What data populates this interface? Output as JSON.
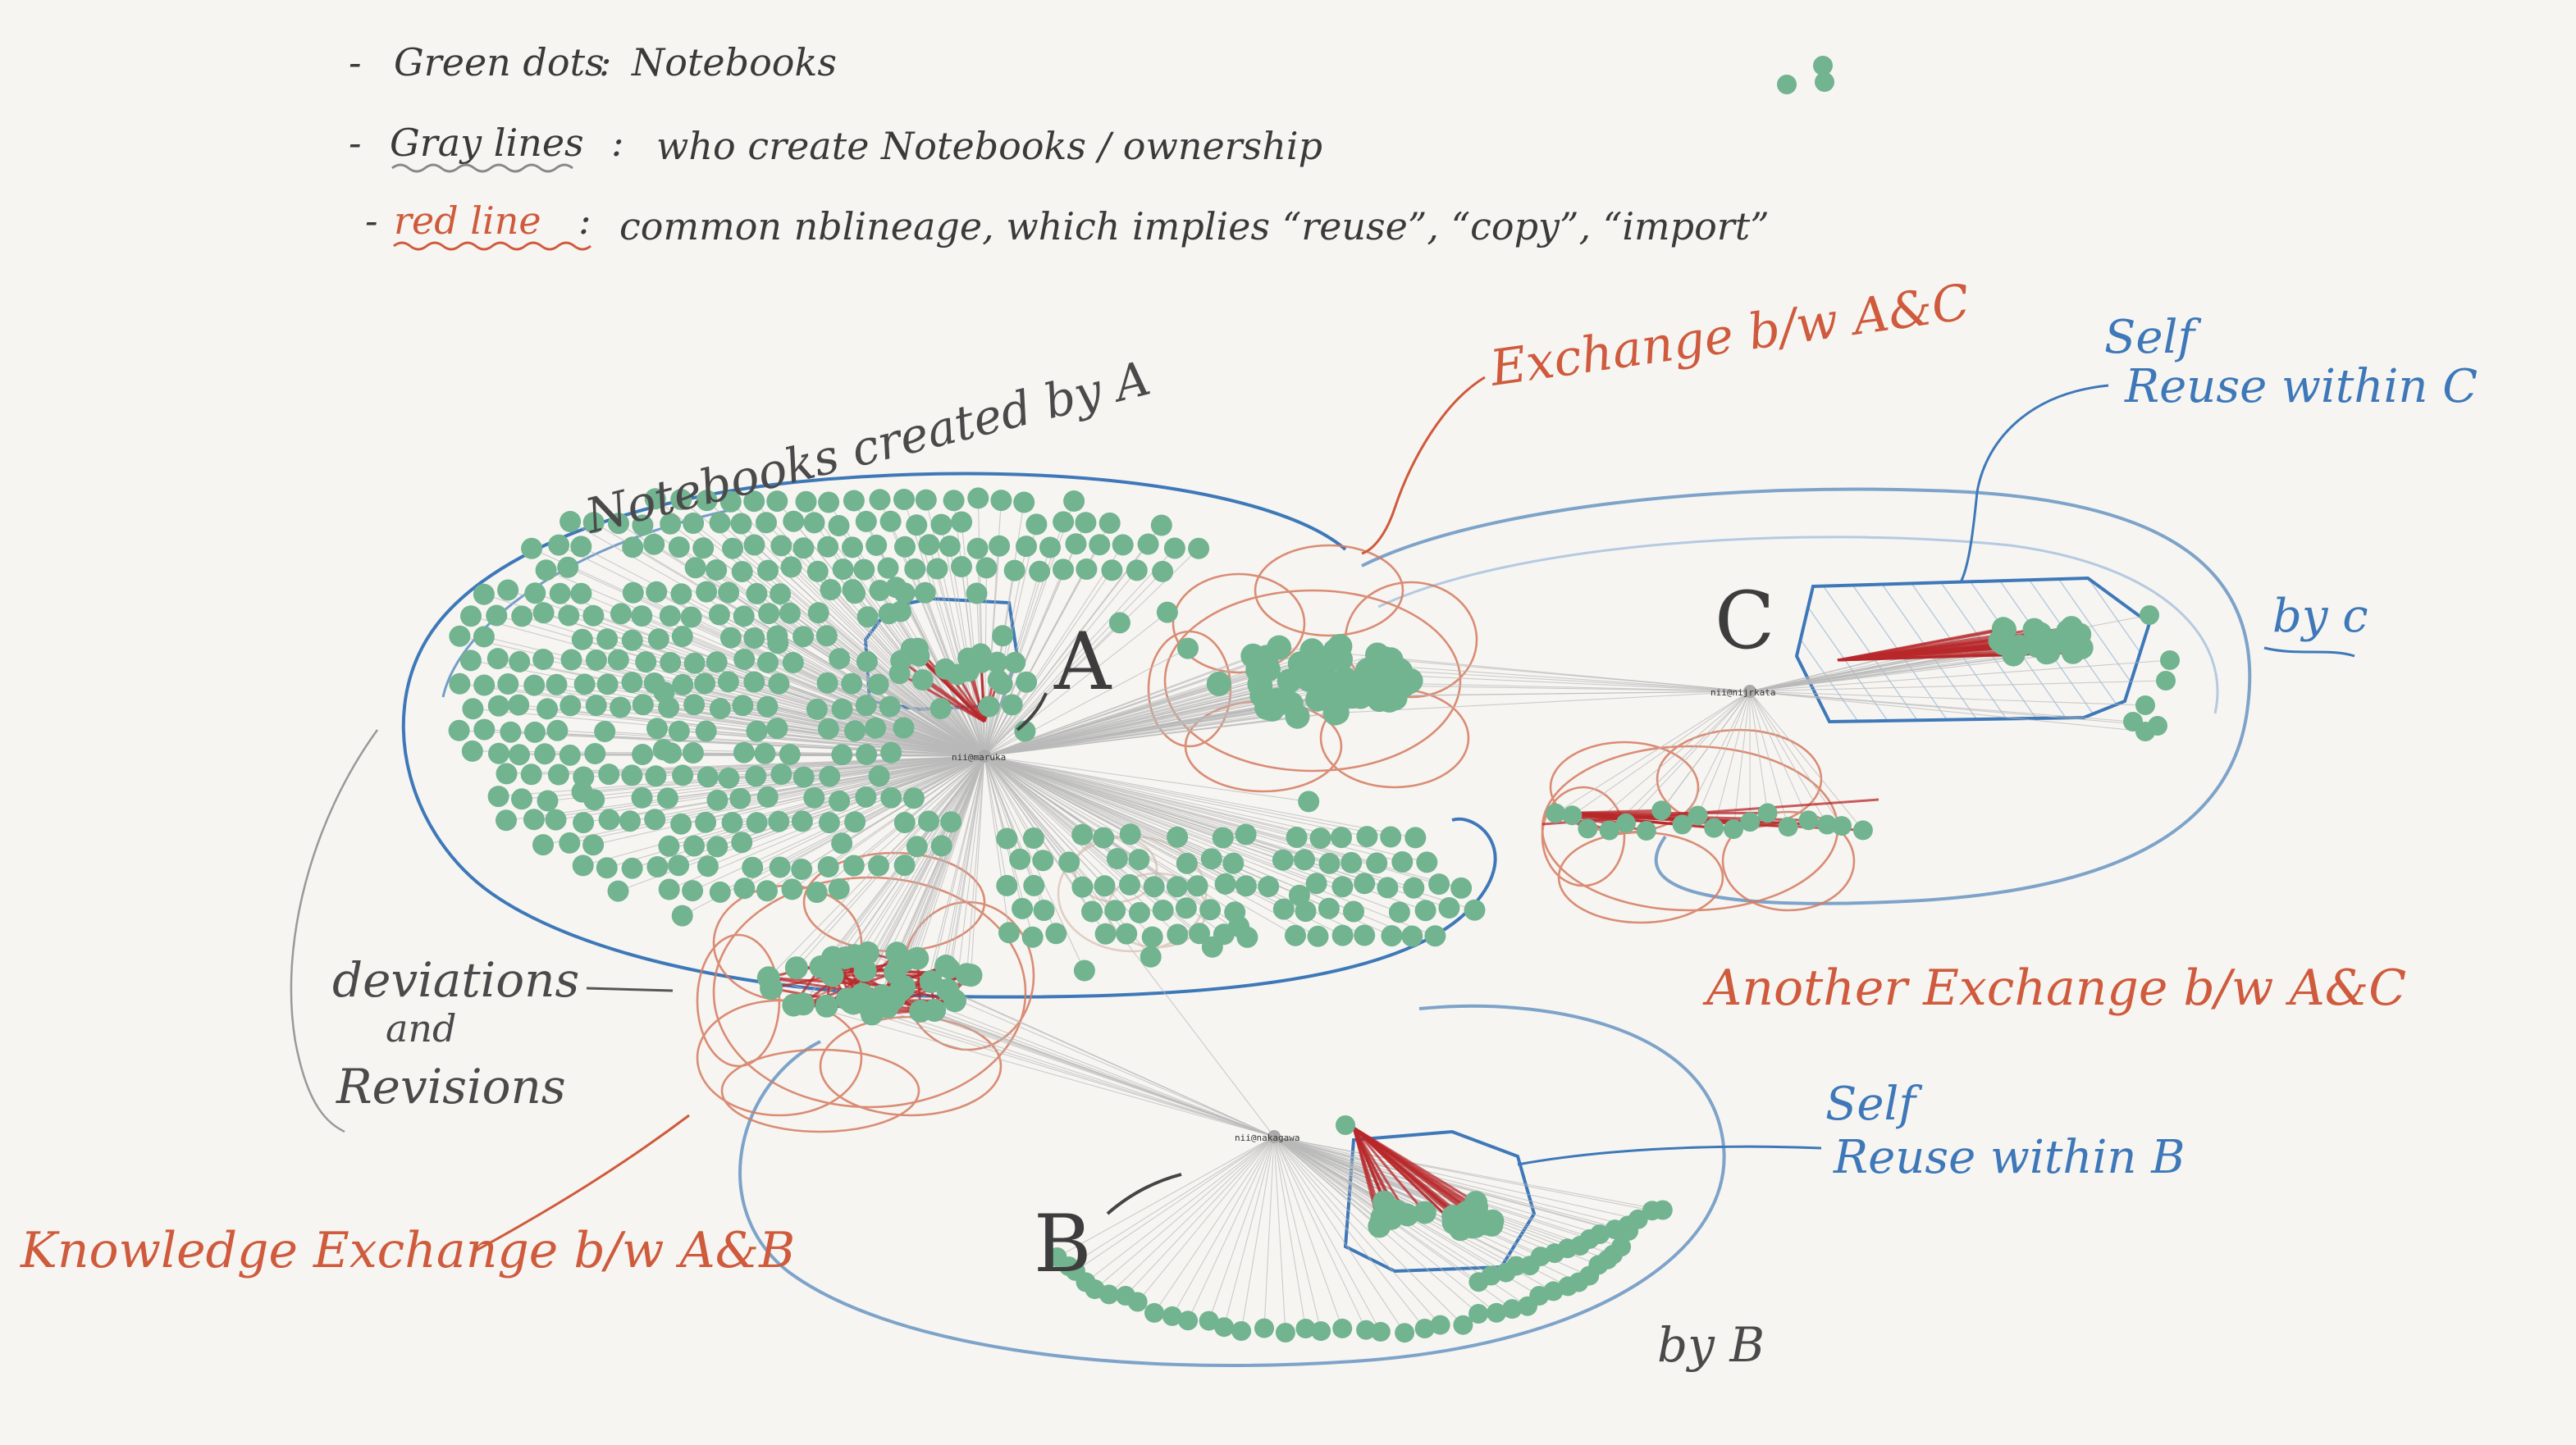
{
  "legend": [
    {
      "dash": "-",
      "key": "Green dots",
      "sep": ":",
      "desc": "Notebooks",
      "key_underline": "none"
    },
    {
      "dash": "-",
      "key": "Gray lines",
      "sep": ":",
      "desc": "who create Notebooks / ownership",
      "key_underline": "gray-wavy"
    },
    {
      "dash": "-",
      "key": "red line",
      "sep": ":",
      "desc": "common nblineage, which implies “reuse”, “copy”, “import”",
      "key_underline": "red-wavy"
    }
  ],
  "nodes": {
    "A": {
      "letter": "A",
      "label": "nii@maruka"
    },
    "B": {
      "letter": "B",
      "label": "nii@nakagawa"
    },
    "C": {
      "letter": "C",
      "label": "nii@nijrkata"
    }
  },
  "annotations": {
    "notebooks_by_a": "Notebooks created by A",
    "exchange_ac": "Exchange b/w A&C",
    "self_reuse_c_line1": "Self",
    "self_reuse_c_line2": "Reuse within C",
    "by_c": "by c",
    "deviations_line1": "deviations",
    "deviations_line2": "and",
    "deviations_line3": "Revisions",
    "another_exchange_ac": "Another Exchange b/w A&C",
    "knowledge_exchange_ab": "Knowledge Exchange b/w A&B",
    "self_reuse_b_line1": "Self",
    "self_reuse_b_line2": "Reuse within B",
    "by_b": "by B"
  },
  "colors": {
    "notebook_dot": "#72b390",
    "gray_line": "#b9b9b9",
    "red_line": "#b8282a",
    "red_annotation": "#cf5a3c",
    "blue_annotation": "#3e78b8",
    "paper": "#f6f5f2"
  }
}
